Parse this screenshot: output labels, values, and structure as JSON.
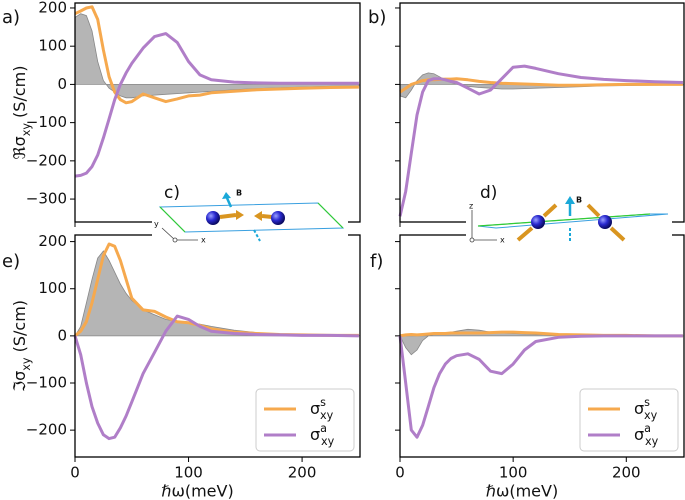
{
  "chart_data": [
    {
      "type": "line",
      "label": "a)",
      "ylabel": {
        "base": "ℜσ",
        "sub": "xy",
        "suffix": " (S/cm)"
      },
      "x": [
        0,
        5,
        10,
        15,
        20,
        25,
        30,
        35,
        40,
        45,
        50,
        60,
        70,
        80,
        90,
        100,
        110,
        120,
        140,
        160,
        180,
        200,
        225,
        250
      ],
      "xlim": [
        0,
        251
      ],
      "xticks": [
        0,
        100,
        200
      ],
      "show_xticklabels": false,
      "ylim": [
        -360,
        213
      ],
      "yticks": [
        {
          "value": -300,
          "label": "−300"
        },
        {
          "value": -200,
          "label": "−200"
        },
        {
          "value": -100,
          "label": "−100"
        },
        0,
        100,
        200
      ],
      "show_yticklabels": true,
      "series": [
        {
          "color": "#a8a8a8",
          "fill": true,
          "values": [
            175,
            185,
            180,
            140,
            60,
            10,
            -10,
            -20,
            -30,
            -35,
            -35,
            -30,
            -28,
            -26,
            -24,
            -22,
            -20,
            -18,
            -14,
            -11,
            -9,
            -7,
            -5,
            -4
          ]
        },
        {
          "name": {
            "base": "σ",
            "sup": "s",
            "sub": "xy"
          },
          "color": "#f6a94e",
          "values": [
            185,
            192,
            200,
            203,
            170,
            90,
            20,
            -20,
            -40,
            -48,
            -45,
            -25,
            -35,
            -45,
            -38,
            -30,
            -28,
            -22,
            -18,
            -14,
            -12,
            -10,
            -8,
            -7
          ]
        },
        {
          "name": {
            "base": "σ",
            "sup": "a",
            "sub": "xy"
          },
          "color": "#b07ec8",
          "values": [
            -240,
            -238,
            -232,
            -215,
            -185,
            -140,
            -90,
            -40,
            0,
            30,
            55,
            95,
            125,
            133,
            110,
            60,
            25,
            12,
            6,
            4,
            3,
            3,
            3,
            3
          ]
        }
      ]
    },
    {
      "type": "line",
      "label": "b)",
      "x": [
        0,
        5,
        10,
        15,
        20,
        25,
        30,
        35,
        40,
        45,
        50,
        60,
        70,
        80,
        90,
        100,
        110,
        120,
        140,
        160,
        180,
        200,
        225,
        250
      ],
      "xlim": [
        0,
        251
      ],
      "xticks": [
        0,
        100,
        200
      ],
      "show_xticklabels": false,
      "ylim": [
        -360,
        213
      ],
      "yticks": [
        {
          "value": -300,
          "label": "−300"
        },
        {
          "value": -200,
          "label": "−200"
        },
        {
          "value": -100,
          "label": "−100"
        },
        0,
        100,
        200
      ],
      "show_yticklabels": false,
      "series": [
        {
          "color": "#a8a8a8",
          "fill": true,
          "values": [
            -30,
            -35,
            -15,
            10,
            25,
            30,
            28,
            20,
            12,
            5,
            0,
            -5,
            -8,
            -10,
            -12,
            -12,
            -11,
            -10,
            -8,
            -6,
            -4,
            -3,
            -2,
            -1
          ]
        },
        {
          "name": {
            "base": "σ",
            "sup": "s",
            "sub": "xy"
          },
          "color": "#f6a94e",
          "values": [
            -20,
            -10,
            0,
            5,
            10,
            12,
            12,
            13,
            14,
            14,
            15,
            12,
            8,
            5,
            3,
            2,
            1,
            0,
            -2,
            -2,
            -1,
            0,
            0,
            0
          ]
        },
        {
          "name": {
            "base": "σ",
            "sup": "a",
            "sub": "xy"
          },
          "color": "#b07ec8",
          "values": [
            -345,
            -280,
            -180,
            -80,
            -20,
            10,
            15,
            15,
            12,
            8,
            5,
            -10,
            -25,
            -15,
            15,
            45,
            48,
            42,
            28,
            18,
            13,
            10,
            7,
            5
          ]
        }
      ]
    },
    {
      "type": "line",
      "label": "e)",
      "ylabel": {
        "base": "ℑσ",
        "sub": "xy",
        "suffix": " (S/cm)"
      },
      "xlabel": "ℏω(meV)",
      "x": [
        0,
        5,
        10,
        15,
        20,
        25,
        30,
        35,
        40,
        45,
        50,
        60,
        70,
        80,
        90,
        100,
        110,
        120,
        140,
        160,
        180,
        200,
        225,
        250
      ],
      "xlim": [
        0,
        251
      ],
      "xticks": [
        0,
        100,
        200
      ],
      "show_xticklabels": true,
      "ylim": [
        -257,
        214
      ],
      "yticks": [
        {
          "value": -200,
          "label": "−200"
        },
        {
          "value": -100,
          "label": "−100"
        },
        0,
        100,
        200
      ],
      "show_yticklabels": true,
      "legend": "lower right",
      "series": [
        {
          "color": "#a8a8a8",
          "fill": true,
          "values": [
            0,
            20,
            70,
            120,
            165,
            180,
            160,
            135,
            110,
            90,
            75,
            55,
            45,
            35,
            30,
            28,
            25,
            20,
            12,
            7,
            4,
            3,
            2,
            1
          ]
        },
        {
          "name": {
            "base": "σ",
            "sup": "s",
            "sub": "xy"
          },
          "color": "#f6a94e",
          "values": [
            0,
            10,
            30,
            70,
            120,
            170,
            195,
            190,
            160,
            120,
            80,
            55,
            52,
            40,
            30,
            28,
            22,
            15,
            8,
            5,
            3,
            2,
            1,
            1
          ]
        },
        {
          "name": {
            "base": "σ",
            "sup": "a",
            "sub": "xy"
          },
          "color": "#b07ec8",
          "values": [
            0,
            -40,
            -100,
            -150,
            -185,
            -210,
            -218,
            -215,
            -195,
            -170,
            -140,
            -80,
            -35,
            10,
            42,
            35,
            20,
            10,
            5,
            3,
            2,
            1,
            1,
            0
          ]
        }
      ]
    },
    {
      "type": "line",
      "label": "f)",
      "xlabel": "ℏω(meV)",
      "x": [
        0,
        5,
        10,
        15,
        20,
        25,
        30,
        35,
        40,
        45,
        50,
        60,
        70,
        80,
        90,
        100,
        110,
        120,
        140,
        160,
        180,
        200,
        225,
        250
      ],
      "xlim": [
        0,
        251
      ],
      "xticks": [
        0,
        100,
        200
      ],
      "show_xticklabels": true,
      "ylim": [
        -257,
        214
      ],
      "yticks": [
        {
          "value": -200,
          "label": "−200"
        },
        {
          "value": -100,
          "label": "−100"
        },
        0,
        100,
        200
      ],
      "show_yticklabels": false,
      "legend": "lower right",
      "series": [
        {
          "color": "#a8a8a8",
          "fill": true,
          "values": [
            0,
            -25,
            -40,
            -30,
            -10,
            0,
            3,
            5,
            6,
            8,
            10,
            14,
            12,
            8,
            6,
            5,
            4,
            3,
            2,
            1,
            0,
            0,
            0,
            0
          ]
        },
        {
          "name": {
            "base": "σ",
            "sup": "s",
            "sub": "xy"
          },
          "color": "#f6a94e",
          "values": [
            0,
            2,
            3,
            2,
            3,
            4,
            5,
            5,
            5,
            6,
            6,
            6,
            6,
            7,
            8,
            8,
            7,
            6,
            3,
            2,
            1,
            1,
            0,
            0
          ]
        },
        {
          "name": {
            "base": "σ",
            "sup": "a",
            "sub": "xy"
          },
          "color": "#b07ec8",
          "values": [
            0,
            -100,
            -200,
            -215,
            -190,
            -150,
            -110,
            -80,
            -60,
            -48,
            -42,
            -38,
            -50,
            -75,
            -80,
            -60,
            -30,
            -12,
            -3,
            -1,
            0,
            0,
            0,
            0
          ]
        }
      ]
    }
  ],
  "insets": [
    {
      "label": "c)",
      "field": "B",
      "axes": [
        "y",
        "x"
      ]
    },
    {
      "label": "d)",
      "field": "B",
      "axes": [
        "z",
        "x"
      ]
    }
  ]
}
